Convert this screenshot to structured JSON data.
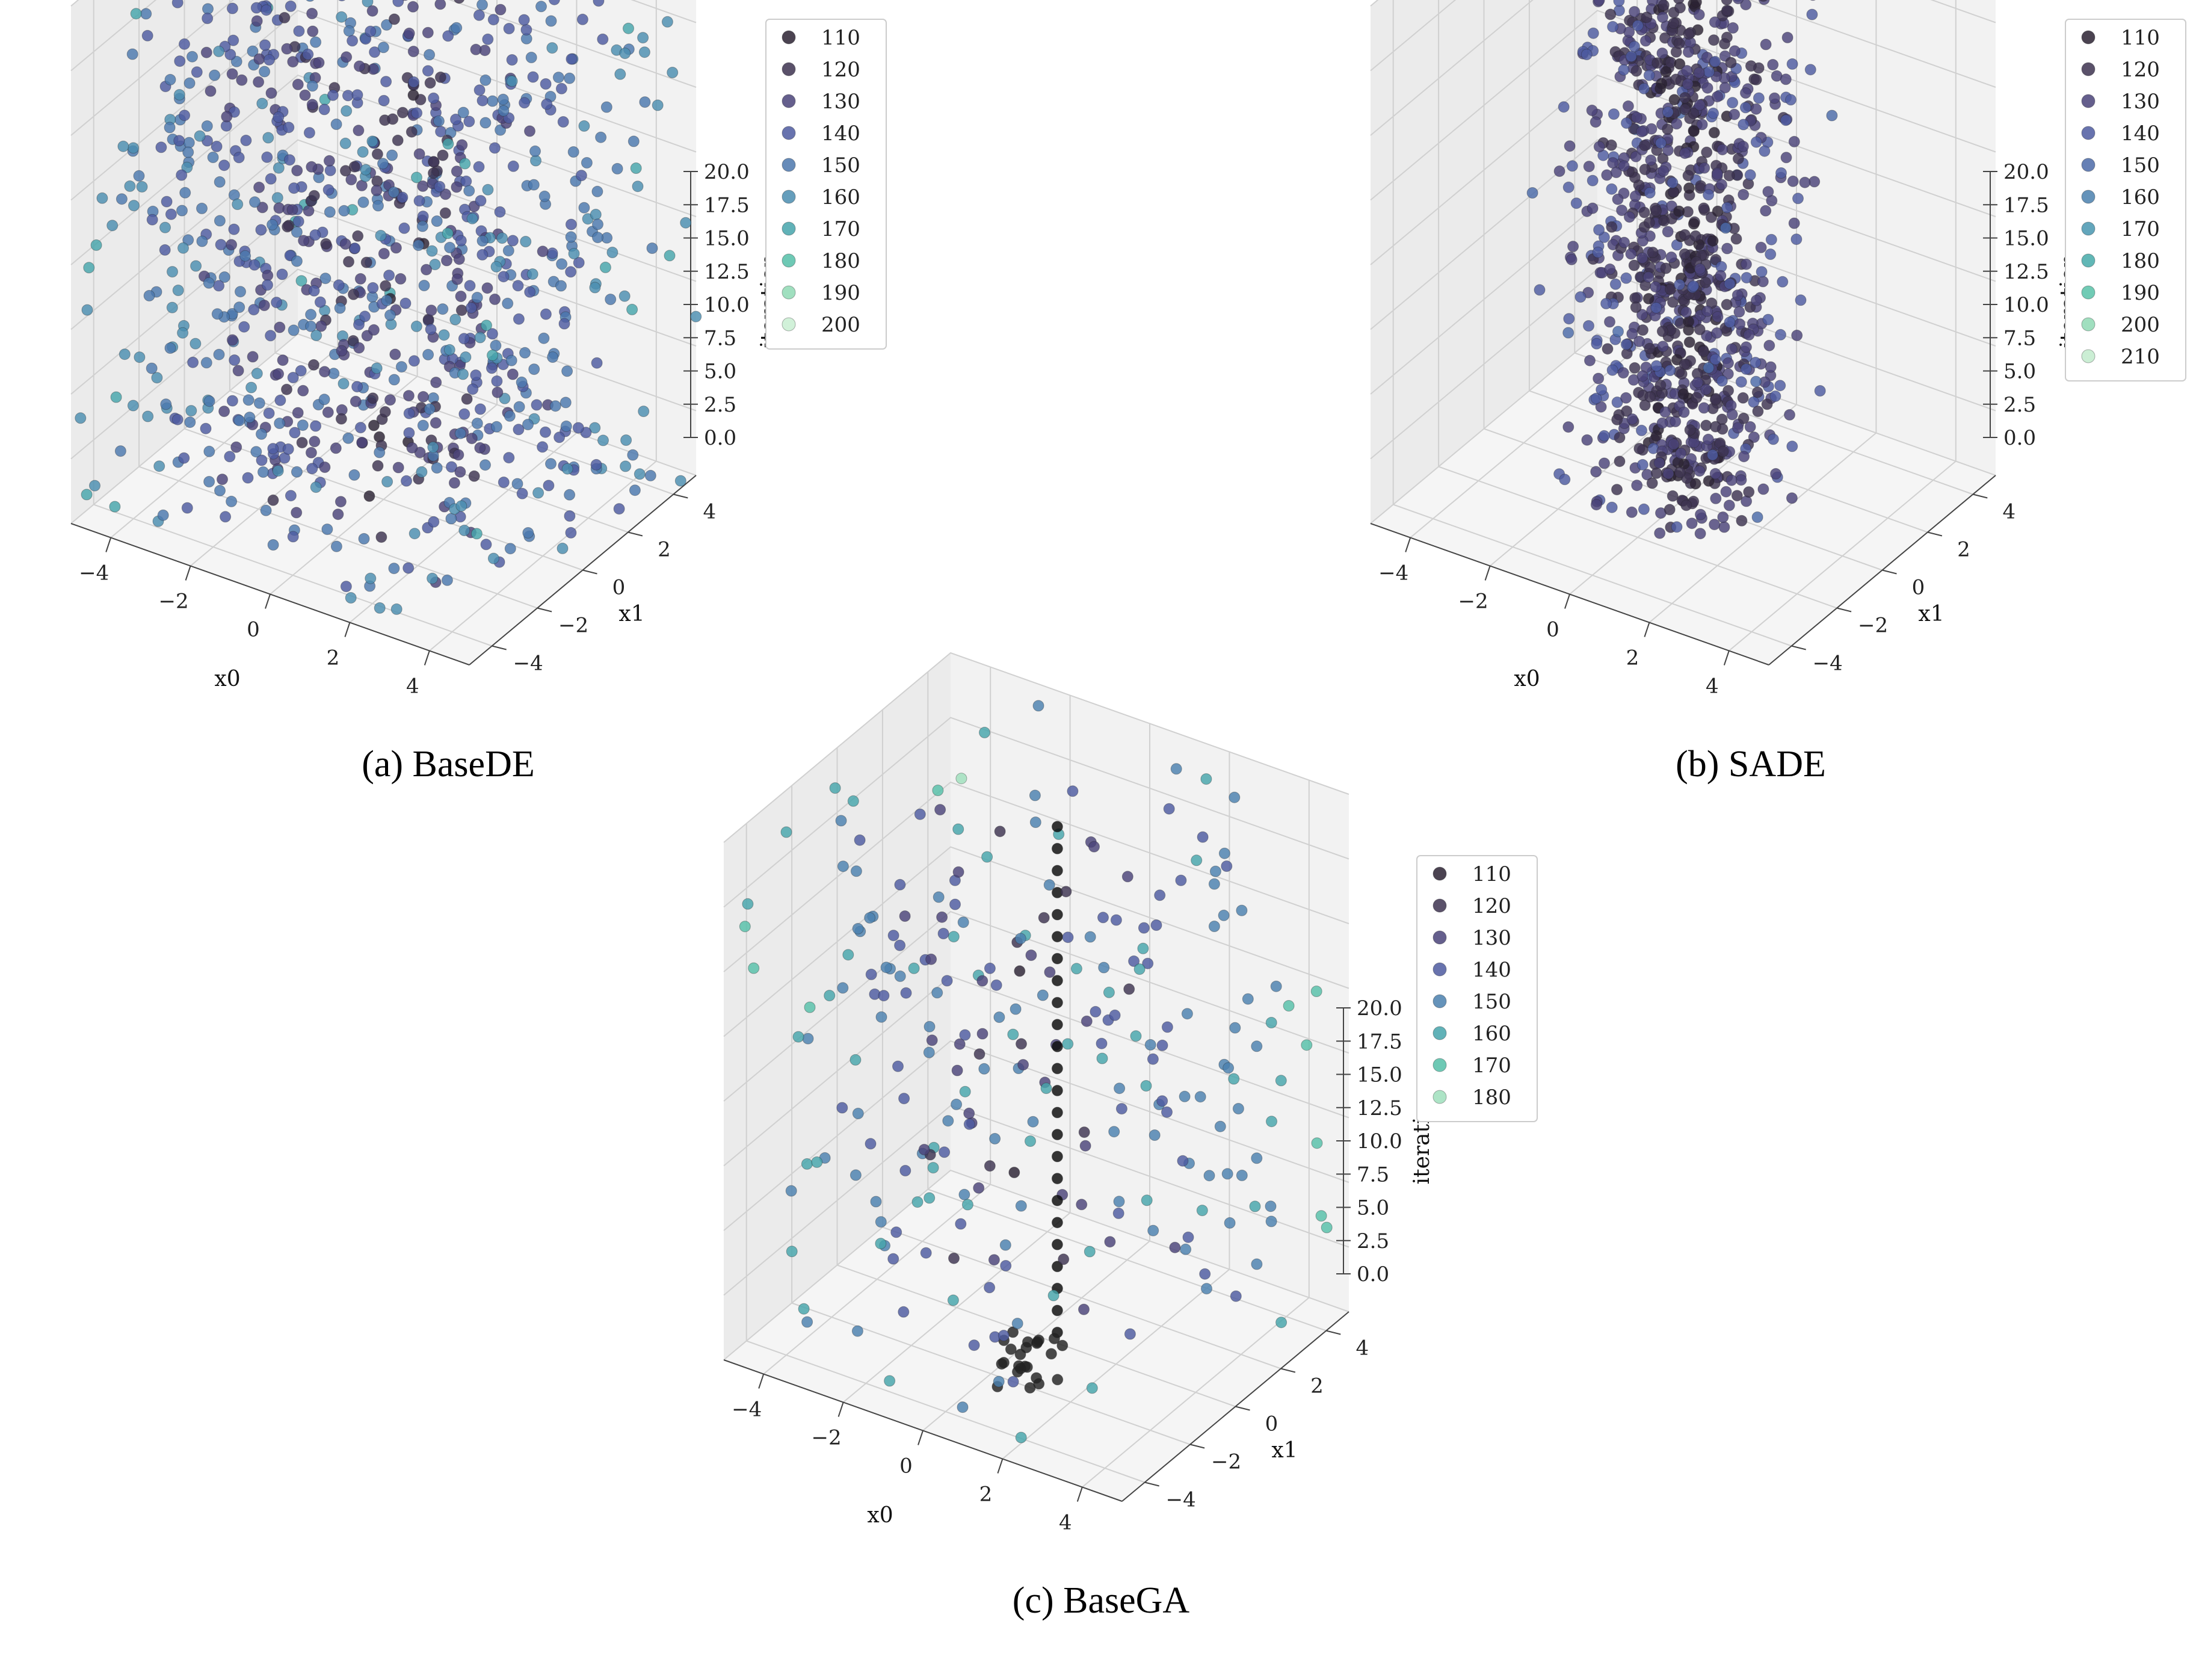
{
  "chart_data": [
    {
      "type": "scatter3d",
      "caption": "(a) BaseDE",
      "xlabel": "x0",
      "ylabel": "x1",
      "zlabel": "iteration",
      "xticks": [
        -4,
        -2,
        0,
        2,
        4
      ],
      "yticks": [
        -4,
        -2,
        0,
        2,
        4
      ],
      "zticks": [
        "0.0",
        "2.5",
        "5.0",
        "7.5",
        "10.0",
        "12.5",
        "15.0",
        "17.5",
        "20.0"
      ],
      "xlim": [
        -5,
        5
      ],
      "ylim": [
        -5,
        5
      ],
      "zlim": [
        0,
        20
      ],
      "legend_title": "",
      "legend": [
        "110",
        "120",
        "130",
        "140",
        "150",
        "160",
        "170",
        "180",
        "190",
        "200"
      ],
      "legend_colors": [
        "#2b2233",
        "#3d3350",
        "#4a4379",
        "#4d5aa0",
        "#4b77ad",
        "#4a8db0",
        "#45a5ab",
        "#55c0a8",
        "#8fd9b4",
        "#c9efd2"
      ],
      "legend_placement": "upper-right-outside",
      "point_distribution": "uniform cloud over x0,x1 in [-5,5], iteration 0-20, mostly values 110-150",
      "point_count": 1000,
      "column_points": false
    },
    {
      "type": "scatter3d",
      "caption": "(b) SADE",
      "xlabel": "x0",
      "ylabel": "x1",
      "zlabel": "iteration",
      "xticks": [
        -4,
        -2,
        0,
        2,
        4
      ],
      "yticks": [
        -4,
        -2,
        0,
        2,
        4
      ],
      "zticks": [
        "0.0",
        "2.5",
        "5.0",
        "7.5",
        "10.0",
        "12.5",
        "15.0",
        "17.5",
        "20.0"
      ],
      "xlim": [
        -5,
        5
      ],
      "ylim": [
        -5,
        5
      ],
      "zlim": [
        0,
        20
      ],
      "legend_title": "",
      "legend": [
        "110",
        "120",
        "130",
        "140",
        "150",
        "160",
        "170",
        "180",
        "190",
        "200",
        "210"
      ],
      "legend_colors": [
        "#2b2233",
        "#3d3350",
        "#4a4379",
        "#4d5aa0",
        "#4b6aa8",
        "#4a80ae",
        "#4896b0",
        "#45aaa9",
        "#58c2a8",
        "#8fd9b4",
        "#c2ebcc"
      ],
      "legend_placement": "upper-right-outside",
      "point_distribution": "dense cloud concentrated near center x0,x1, iteration 0-20",
      "point_count": 1000,
      "column_points": false
    },
    {
      "type": "scatter3d",
      "caption": "(c) BaseGA",
      "xlabel": "x0",
      "ylabel": "x1",
      "zlabel": "iteration",
      "xticks": [
        -4,
        -2,
        0,
        2,
        4
      ],
      "yticks": [
        -4,
        -2,
        0,
        2,
        4
      ],
      "zticks": [
        "0.0",
        "2.5",
        "5.0",
        "7.5",
        "10.0",
        "12.5",
        "15.0",
        "17.5",
        "20.0"
      ],
      "xlim": [
        -5,
        5
      ],
      "ylim": [
        -5,
        5
      ],
      "zlim": [
        0,
        20
      ],
      "legend_title": "",
      "legend": [
        "110",
        "120",
        "130",
        "140",
        "150",
        "160",
        "170",
        "180"
      ],
      "legend_colors": [
        "#2b2233",
        "#3d3350",
        "#4a4379",
        "#4d5aa0",
        "#4a80ae",
        "#45a5ab",
        "#55c0a8",
        "#9fdfbc"
      ],
      "legend_placement": "upper-right-outside",
      "point_distribution": "sparse points plus a vertical column of black points near center, iteration 0-20",
      "point_count": 260,
      "column_points": true
    }
  ]
}
